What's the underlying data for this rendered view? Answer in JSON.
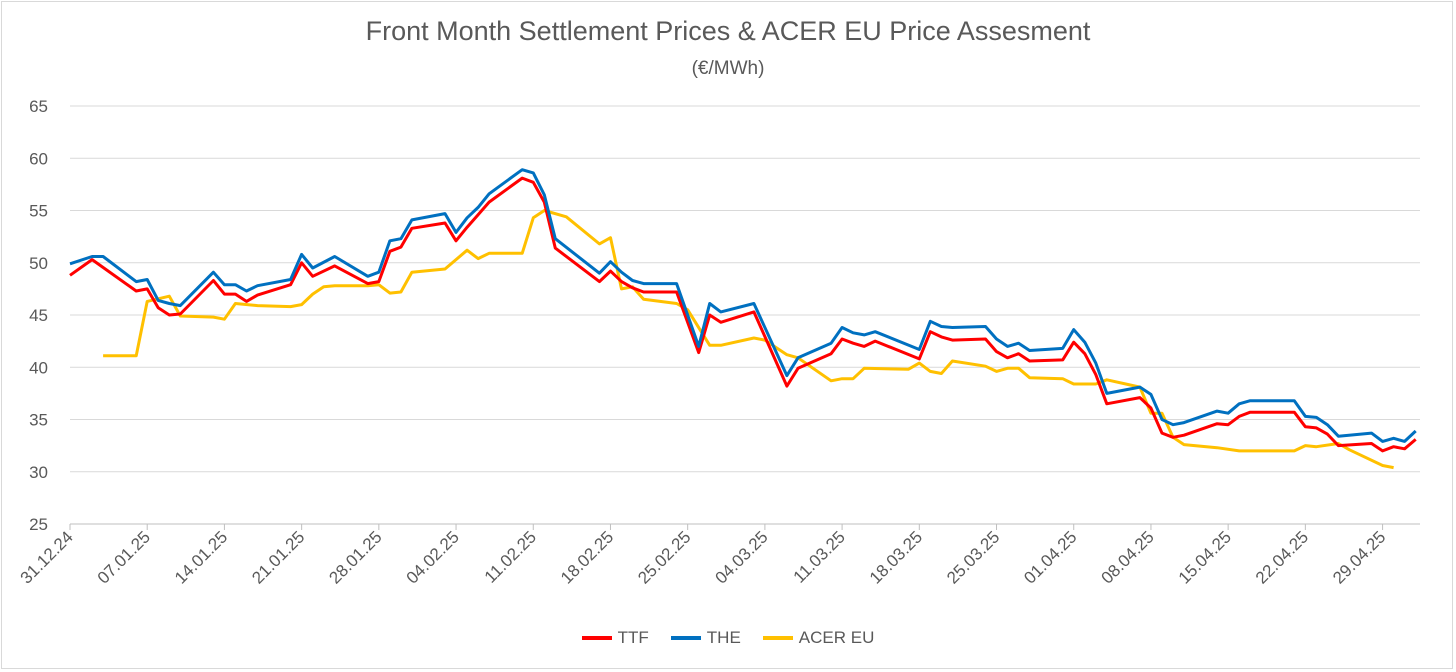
{
  "chart_data": {
    "type": "line",
    "title": "Front Month Settlement Prices & ACER EU Price Assesment",
    "subtitle": "(€/MWh)",
    "xlabel": "",
    "ylabel": "",
    "x_unit": "days since 31.12.24",
    "ylim": [
      25,
      65
    ],
    "yticks": [
      25,
      30,
      35,
      40,
      45,
      50,
      55,
      60,
      65
    ],
    "xticks": [
      {
        "day": 0,
        "label": "31.12.24"
      },
      {
        "day": 7,
        "label": "07.01.25"
      },
      {
        "day": 14,
        "label": "14.01.25"
      },
      {
        "day": 21,
        "label": "21.01.25"
      },
      {
        "day": 28,
        "label": "28.01.25"
      },
      {
        "day": 35,
        "label": "04.02.25"
      },
      {
        "day": 42,
        "label": "11.02.25"
      },
      {
        "day": 49,
        "label": "18.02.25"
      },
      {
        "day": 56,
        "label": "25.02.25"
      },
      {
        "day": 63,
        "label": "04.03.25"
      },
      {
        "day": 70,
        "label": "11.03.25"
      },
      {
        "day": 77,
        "label": "18.03.25"
      },
      {
        "day": 84,
        "label": "25.03.25"
      },
      {
        "day": 91,
        "label": "01.04.25"
      },
      {
        "day": 98,
        "label": "08.04.25"
      },
      {
        "day": 105,
        "label": "15.04.25"
      },
      {
        "day": 112,
        "label": "22.04.25"
      },
      {
        "day": 119,
        "label": "29.04.25"
      }
    ],
    "grid": true,
    "legend_position": "bottom",
    "series": [
      {
        "name": "TTF",
        "color": "#ff0000",
        "points": [
          [
            0,
            48.8
          ],
          [
            2,
            50.3
          ],
          [
            6,
            47.3
          ],
          [
            7,
            47.5
          ],
          [
            8,
            45.7
          ],
          [
            9,
            45.0
          ],
          [
            10,
            45.1
          ],
          [
            13,
            48.3
          ],
          [
            14,
            47.0
          ],
          [
            15,
            47.0
          ],
          [
            16,
            46.3
          ],
          [
            17,
            46.9
          ],
          [
            20,
            47.9
          ],
          [
            21,
            50.0
          ],
          [
            22,
            48.7
          ],
          [
            24,
            49.7
          ],
          [
            27,
            48.0
          ],
          [
            28,
            48.2
          ],
          [
            29,
            51.1
          ],
          [
            30,
            51.5
          ],
          [
            31,
            53.3
          ],
          [
            34,
            53.8
          ],
          [
            35,
            52.1
          ],
          [
            36,
            53.4
          ],
          [
            37,
            54.6
          ],
          [
            38,
            55.8
          ],
          [
            41,
            58.1
          ],
          [
            42,
            57.7
          ],
          [
            43,
            55.8
          ],
          [
            44,
            51.4
          ],
          [
            48,
            48.2
          ],
          [
            49,
            49.2
          ],
          [
            50,
            48.2
          ],
          [
            51,
            47.6
          ],
          [
            52,
            47.2
          ],
          [
            55,
            47.2
          ],
          [
            57,
            41.4
          ],
          [
            58,
            45.0
          ],
          [
            59,
            44.3
          ],
          [
            62,
            45.3
          ],
          [
            65,
            38.2
          ],
          [
            66,
            39.9
          ],
          [
            69,
            41.3
          ],
          [
            70,
            42.7
          ],
          [
            71,
            42.3
          ],
          [
            72,
            42.0
          ],
          [
            73,
            42.5
          ],
          [
            77,
            40.8
          ],
          [
            78,
            43.4
          ],
          [
            79,
            42.9
          ],
          [
            80,
            42.6
          ],
          [
            83,
            42.7
          ],
          [
            84,
            41.5
          ],
          [
            85,
            40.9
          ],
          [
            86,
            41.3
          ],
          [
            87,
            40.6
          ],
          [
            90,
            40.7
          ],
          [
            91,
            42.4
          ],
          [
            92,
            41.3
          ],
          [
            93,
            39.3
          ],
          [
            94,
            36.5
          ],
          [
            97,
            37.1
          ],
          [
            98,
            36.1
          ],
          [
            99,
            33.7
          ],
          [
            100,
            33.3
          ],
          [
            101,
            33.5
          ],
          [
            104,
            34.6
          ],
          [
            105,
            34.5
          ],
          [
            106,
            35.3
          ],
          [
            107,
            35.7
          ],
          [
            111,
            35.7
          ],
          [
            112,
            34.3
          ],
          [
            113,
            34.2
          ],
          [
            114,
            33.6
          ],
          [
            115,
            32.5
          ],
          [
            118,
            32.7
          ],
          [
            119,
            32.0
          ],
          [
            120,
            32.4
          ],
          [
            121,
            32.2
          ],
          [
            122,
            33.1
          ]
        ]
      },
      {
        "name": "THE",
        "color": "#0070c0",
        "points": [
          [
            0,
            49.9
          ],
          [
            2,
            50.6
          ],
          [
            3,
            50.6
          ],
          [
            6,
            48.2
          ],
          [
            7,
            48.4
          ],
          [
            8,
            46.4
          ],
          [
            9,
            46.1
          ],
          [
            10,
            45.9
          ],
          [
            13,
            49.1
          ],
          [
            14,
            47.9
          ],
          [
            15,
            47.9
          ],
          [
            16,
            47.3
          ],
          [
            17,
            47.8
          ],
          [
            20,
            48.4
          ],
          [
            21,
            50.8
          ],
          [
            22,
            49.5
          ],
          [
            24,
            50.6
          ],
          [
            27,
            48.7
          ],
          [
            28,
            49.1
          ],
          [
            29,
            52.1
          ],
          [
            30,
            52.3
          ],
          [
            31,
            54.1
          ],
          [
            34,
            54.7
          ],
          [
            35,
            52.9
          ],
          [
            36,
            54.3
          ],
          [
            37,
            55.3
          ],
          [
            38,
            56.6
          ],
          [
            41,
            58.9
          ],
          [
            42,
            58.6
          ],
          [
            43,
            56.5
          ],
          [
            44,
            52.3
          ],
          [
            48,
            49.0
          ],
          [
            49,
            50.1
          ],
          [
            50,
            49.1
          ],
          [
            51,
            48.3
          ],
          [
            52,
            48.0
          ],
          [
            55,
            48.0
          ],
          [
            57,
            42.0
          ],
          [
            58,
            46.1
          ],
          [
            59,
            45.3
          ],
          [
            62,
            46.1
          ],
          [
            65,
            39.2
          ],
          [
            66,
            40.9
          ],
          [
            69,
            42.3
          ],
          [
            70,
            43.8
          ],
          [
            71,
            43.3
          ],
          [
            72,
            43.1
          ],
          [
            73,
            43.4
          ],
          [
            77,
            41.7
          ],
          [
            78,
            44.4
          ],
          [
            79,
            43.9
          ],
          [
            80,
            43.8
          ],
          [
            83,
            43.9
          ],
          [
            84,
            42.7
          ],
          [
            85,
            42.0
          ],
          [
            86,
            42.3
          ],
          [
            87,
            41.6
          ],
          [
            90,
            41.8
          ],
          [
            91,
            43.6
          ],
          [
            92,
            42.4
          ],
          [
            93,
            40.4
          ],
          [
            94,
            37.5
          ],
          [
            97,
            38.1
          ],
          [
            98,
            37.4
          ],
          [
            99,
            35.0
          ],
          [
            100,
            34.5
          ],
          [
            101,
            34.7
          ],
          [
            104,
            35.8
          ],
          [
            105,
            35.6
          ],
          [
            106,
            36.5
          ],
          [
            107,
            36.8
          ],
          [
            111,
            36.8
          ],
          [
            112,
            35.3
          ],
          [
            113,
            35.2
          ],
          [
            114,
            34.5
          ],
          [
            115,
            33.4
          ],
          [
            118,
            33.7
          ],
          [
            119,
            32.9
          ],
          [
            120,
            33.2
          ],
          [
            121,
            32.9
          ],
          [
            122,
            33.9
          ]
        ]
      },
      {
        "name": "ACER EU",
        "color": "#ffc000",
        "points": [
          [
            3,
            41.1
          ],
          [
            6,
            41.1
          ],
          [
            7,
            46.3
          ],
          [
            9,
            46.8
          ],
          [
            10,
            44.9
          ],
          [
            13,
            44.8
          ],
          [
            14,
            44.6
          ],
          [
            15,
            46.1
          ],
          [
            17,
            45.9
          ],
          [
            20,
            45.8
          ],
          [
            21,
            46.0
          ],
          [
            22,
            47.0
          ],
          [
            23,
            47.7
          ],
          [
            24,
            47.8
          ],
          [
            27,
            47.8
          ],
          [
            28,
            47.9
          ],
          [
            29,
            47.1
          ],
          [
            30,
            47.2
          ],
          [
            31,
            49.1
          ],
          [
            34,
            49.4
          ],
          [
            36,
            51.2
          ],
          [
            37,
            50.4
          ],
          [
            38,
            50.9
          ],
          [
            41,
            50.9
          ],
          [
            42,
            54.3
          ],
          [
            43,
            55.0
          ],
          [
            45,
            54.4
          ],
          [
            48,
            51.8
          ],
          [
            49,
            52.4
          ],
          [
            50,
            47.5
          ],
          [
            51,
            47.7
          ],
          [
            52,
            46.5
          ],
          [
            55,
            46.1
          ],
          [
            56,
            45.5
          ],
          [
            58,
            42.1
          ],
          [
            59,
            42.1
          ],
          [
            62,
            42.8
          ],
          [
            63,
            42.6
          ],
          [
            65,
            41.2
          ],
          [
            66,
            40.9
          ],
          [
            69,
            38.7
          ],
          [
            70,
            38.9
          ],
          [
            71,
            38.9
          ],
          [
            72,
            39.9
          ],
          [
            76,
            39.8
          ],
          [
            77,
            40.4
          ],
          [
            78,
            39.6
          ],
          [
            79,
            39.4
          ],
          [
            80,
            40.6
          ],
          [
            83,
            40.1
          ],
          [
            84,
            39.6
          ],
          [
            85,
            39.9
          ],
          [
            86,
            39.9
          ],
          [
            87,
            39.0
          ],
          [
            90,
            38.9
          ],
          [
            91,
            38.4
          ],
          [
            93,
            38.4
          ],
          [
            94,
            38.8
          ],
          [
            97,
            38.1
          ],
          [
            98,
            35.6
          ],
          [
            99,
            35.6
          ],
          [
            100,
            33.3
          ],
          [
            101,
            32.6
          ],
          [
            104,
            32.3
          ],
          [
            106,
            32.0
          ],
          [
            111,
            32.0
          ],
          [
            112,
            32.5
          ],
          [
            113,
            32.4
          ],
          [
            115,
            32.7
          ],
          [
            116,
            32.1
          ],
          [
            119,
            30.6
          ],
          [
            120,
            30.4
          ]
        ]
      }
    ]
  }
}
